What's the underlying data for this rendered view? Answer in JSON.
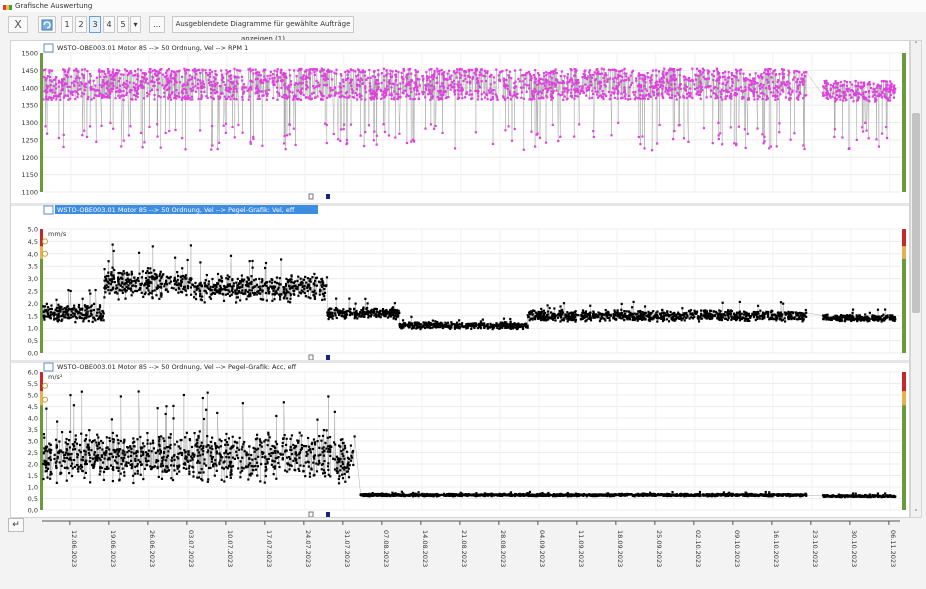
{
  "window": {
    "title": "Grafische Auswertung"
  },
  "toolbar": {
    "close_label": "X",
    "layout_buttons": [
      "1",
      "2",
      "3",
      "4",
      "5"
    ],
    "more_label": "...",
    "hidden_diagrams_label": "Ausgeblendete Diagramme für gewählte Aufträge anzeigen (1)"
  },
  "icons": {
    "close": "close-icon",
    "refresh": "refresh-icon",
    "dropdown": "chevron-down-icon",
    "undo": "undo-icon",
    "scroll_up": "chevron-up-icon",
    "scroll_down": "chevron-down-icon"
  },
  "colors": {
    "rpm_series": "#e040e0",
    "vib_series": "#000000",
    "band_ok": "#6a9a3c",
    "band_warn": "#e8b24a",
    "band_alarm": "#c62828",
    "title_highlight": "#3d8de0"
  },
  "x_axis": {
    "ticks": [
      "12.06.2023",
      "19.06.2023",
      "26.06.2023",
      "03.07.2023",
      "10.07.2023",
      "17.07.2023",
      "24.07.2023",
      "31.07.2023",
      "07.08.2023",
      "14.08.2023",
      "21.08.2023",
      "28.08.2023",
      "04.09.2023",
      "11.09.2023",
      "18.09.2023",
      "25.09.2023",
      "02.10.2023",
      "09.10.2023",
      "16.10.2023",
      "23.10.2023",
      "30.10.2023",
      "06.11.2023"
    ]
  },
  "chart_data": [
    {
      "type": "scatter",
      "title": "WSTO-OBE003.01 Motor 85 --> 50 Ordnung, Vel --> RPM 1",
      "ylabel": "",
      "ylim": [
        1100,
        1500
      ],
      "yticks": [
        "1500",
        "1450",
        "1400",
        "1350",
        "1300",
        "1250",
        "1200",
        "1150",
        "1100"
      ],
      "x_range": [
        "2023-06-07",
        "2023-11-08"
      ],
      "series": [
        {
          "color": "#e040e0",
          "segments": [
            {
              "start": "2023-06-07",
              "end": "2023-10-22",
              "mean": 1410,
              "spread": 90,
              "low_outlier": 1220
            },
            {
              "start": "2023-10-25",
              "end": "2023-11-07",
              "mean": 1390,
              "spread": 60,
              "low_outlier": 1220
            }
          ]
        }
      ]
    },
    {
      "type": "scatter",
      "title": "WSTO-OBE003.01 Motor 85 --> 50 Ordnung, Vel --> Pegel-Grafik: Vel, eff",
      "ylabel": "mm/s",
      "ylim": [
        0,
        5
      ],
      "yticks": [
        "5,0",
        "4,5",
        "4,0",
        "3,5",
        "3,0",
        "2,5",
        "2,0",
        "1,5",
        "1,0",
        "0,5",
        "0,0"
      ],
      "x_range": [
        "2023-06-07",
        "2023-11-08"
      ],
      "series": [
        {
          "color": "#000000",
          "segments": [
            {
              "start": "2023-06-07",
              "end": "2023-06-18",
              "mean": 1.6,
              "spread": 0.8
            },
            {
              "start": "2023-06-18",
              "end": "2023-07-05",
              "mean": 2.8,
              "spread": 1.4
            },
            {
              "start": "2023-07-05",
              "end": "2023-07-28",
              "mean": 2.6,
              "spread": 1.2
            },
            {
              "start": "2023-07-28",
              "end": "2023-08-10",
              "mean": 1.6,
              "spread": 0.5
            },
            {
              "start": "2023-08-10",
              "end": "2023-09-02",
              "mean": 1.1,
              "spread": 0.3
            },
            {
              "start": "2023-09-02",
              "end": "2023-10-22",
              "mean": 1.5,
              "spread": 0.5
            },
            {
              "start": "2023-10-25",
              "end": "2023-11-07",
              "mean": 1.4,
              "spread": 0.3
            }
          ]
        }
      ]
    },
    {
      "type": "scatter",
      "title": "WSTO-OBE003.01 Motor 85 --> 50 Ordnung, Vel --> Pegel-Grafik: Acc, eff",
      "ylabel": "m/s²",
      "ylim": [
        0,
        6
      ],
      "yticks": [
        "6,0",
        "5,5",
        "5,0",
        "4,5",
        "4,0",
        "3,5",
        "3,0",
        "2,5",
        "2,0",
        "1,5",
        "1,0",
        "0,5",
        "0,0"
      ],
      "x_range": [
        "2023-06-07",
        "2023-11-08"
      ],
      "series": [
        {
          "color": "#000000",
          "segments": [
            {
              "start": "2023-06-07",
              "end": "2023-08-02",
              "mean": 2.3,
              "spread": 2.4
            },
            {
              "start": "2023-08-03",
              "end": "2023-10-22",
              "mean": 0.65,
              "spread": 0.12
            },
            {
              "start": "2023-10-25",
              "end": "2023-11-07",
              "mean": 0.6,
              "spread": 0.1
            }
          ]
        }
      ]
    }
  ]
}
